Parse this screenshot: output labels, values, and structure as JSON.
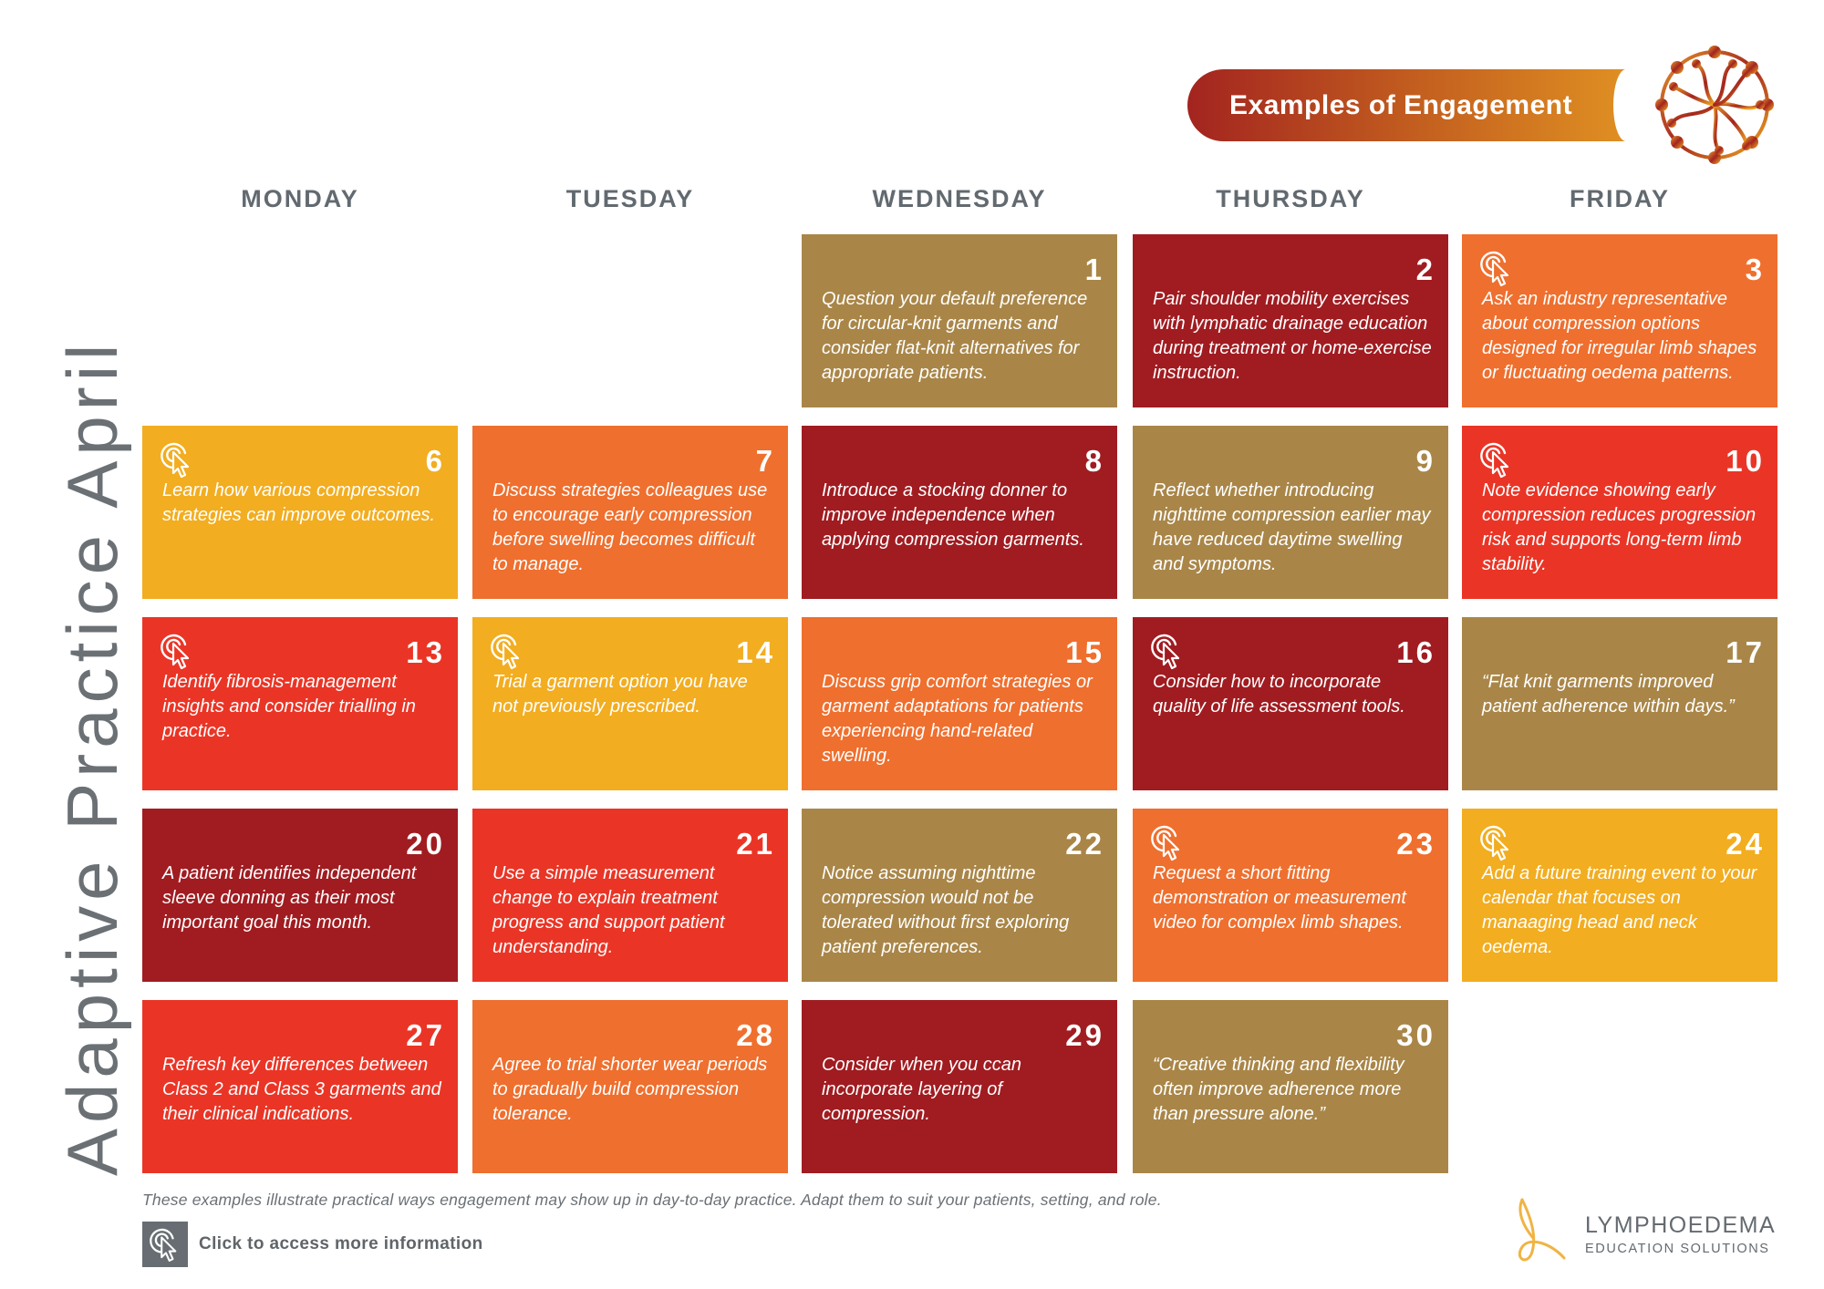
{
  "header": {
    "banner_title": "Examples of Engagement",
    "side_title": "Adaptive Practice April"
  },
  "colors": {
    "gold": "#a98648",
    "maroon": "#a01c21",
    "orange": "#ef6f2e",
    "yellow": "#f2ad20",
    "red": "#ea3526",
    "text_gray": "#626a70",
    "icon_box": "#676d72"
  },
  "days": [
    "MONDAY",
    "TUESDAY",
    "WEDNESDAY",
    "THURSDAY",
    "FRIDAY"
  ],
  "cells": [
    {
      "day": "1",
      "col": 2,
      "row": 0,
      "color": "gold",
      "link": false,
      "text": "Question your default preference for circular-knit garments and consider flat-knit alternatives for appropriate patients."
    },
    {
      "day": "2",
      "col": 3,
      "row": 0,
      "color": "maroon",
      "link": false,
      "text": "Pair shoulder mobility exercises with lymphatic drainage education during treatment or home-exercise instruction."
    },
    {
      "day": "3",
      "col": 4,
      "row": 0,
      "color": "orange",
      "link": true,
      "text": "Ask an industry representative about compression options designed for irregular limb shapes or fluctuating oedema patterns."
    },
    {
      "day": "6",
      "col": 0,
      "row": 1,
      "color": "yellow",
      "link": true,
      "text": "Learn how various compression strategies can improve outcomes."
    },
    {
      "day": "7",
      "col": 1,
      "row": 1,
      "color": "orange",
      "link": false,
      "text": "Discuss strategies colleagues use to encourage early compression before swelling becomes difficult to manage."
    },
    {
      "day": "8",
      "col": 2,
      "row": 1,
      "color": "maroon",
      "link": false,
      "text": "Introduce a stocking donner to improve independence when applying compression garments."
    },
    {
      "day": "9",
      "col": 3,
      "row": 1,
      "color": "gold",
      "link": false,
      "text": "Reflect whether introducing nighttime compression earlier may have reduced daytime swelling and symptoms."
    },
    {
      "day": "10",
      "col": 4,
      "row": 1,
      "color": "red",
      "link": true,
      "text": "Note evidence showing early compression reduces progression risk and supports long-term limb stability."
    },
    {
      "day": "13",
      "col": 0,
      "row": 2,
      "color": "red",
      "link": true,
      "text": "Identify fibrosis-management insights and consider trialling in practice."
    },
    {
      "day": "14",
      "col": 1,
      "row": 2,
      "color": "yellow",
      "link": true,
      "text": "Trial a garment option you have not previously prescribed."
    },
    {
      "day": "15",
      "col": 2,
      "row": 2,
      "color": "orange",
      "link": false,
      "text": "Discuss grip comfort strategies or garment adaptations for patients experiencing hand-related swelling."
    },
    {
      "day": "16",
      "col": 3,
      "row": 2,
      "color": "maroon",
      "link": true,
      "text": "Consider  how to incorporate quality of life assessment tools."
    },
    {
      "day": "17",
      "col": 4,
      "row": 2,
      "color": "gold",
      "link": false,
      "text": "“Flat knit garments improved patient adherence within days.”"
    },
    {
      "day": "20",
      "col": 0,
      "row": 3,
      "color": "maroon",
      "link": false,
      "text": "A patient identifies independent sleeve donning as their most important goal this month."
    },
    {
      "day": "21",
      "col": 1,
      "row": 3,
      "color": "red",
      "link": false,
      "text": "Use a simple measurement change to explain treatment progress and support patient understanding."
    },
    {
      "day": "22",
      "col": 2,
      "row": 3,
      "color": "gold",
      "link": false,
      "text": "Notice assuming nighttime compression would not be tolerated without first exploring patient preferences."
    },
    {
      "day": "23",
      "col": 3,
      "row": 3,
      "color": "orange",
      "link": true,
      "text": "Request a short fitting demonstration or measurement video for complex limb shapes."
    },
    {
      "day": "24",
      "col": 4,
      "row": 3,
      "color": "yellow",
      "link": true,
      "text": "Add a future training event to your calendar that focuses on manaaging head and neck oedema."
    },
    {
      "day": "27",
      "col": 0,
      "row": 4,
      "color": "red",
      "link": false,
      "text": "Refresh key differences between Class 2 and Class 3 garments and their clinical indications."
    },
    {
      "day": "28",
      "col": 1,
      "row": 4,
      "color": "orange",
      "link": false,
      "text": "Agree to trial shorter wear periods to gradually build compression tolerance."
    },
    {
      "day": "29",
      "col": 2,
      "row": 4,
      "color": "maroon",
      "link": false,
      "text": "Consider when you ccan incorporate layering of compression."
    },
    {
      "day": "30",
      "col": 3,
      "row": 4,
      "color": "gold",
      "link": false,
      "text": "“Creative thinking and flexibility often improve adherence more than pressure alone.”"
    }
  ],
  "footer": {
    "note": "These examples illustrate practical ways engagement may show up in day-to-day practice. Adapt them to suit your patients, setting, and role.",
    "info_label": "Click to access more information",
    "logo_line1": "LYMPHOEDEMA",
    "logo_line2": "EDUCATION SOLUTIONS"
  }
}
